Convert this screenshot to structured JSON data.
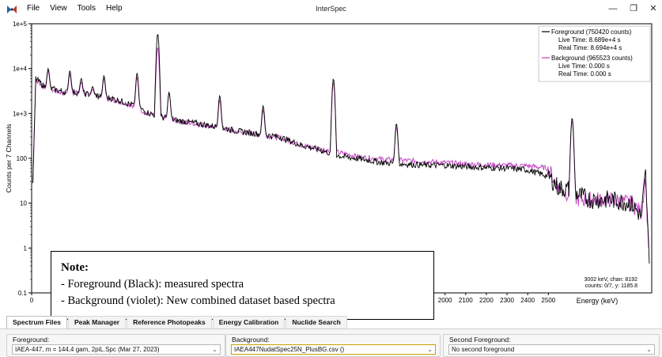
{
  "menu": {
    "file": "File",
    "view": "View",
    "tools": "Tools",
    "help": "Help"
  },
  "window": {
    "title": "InterSpec",
    "min_symbol": "—",
    "max_symbol": "❐",
    "close_symbol": "✕"
  },
  "chart_data": {
    "type": "line",
    "xlabel": "Energy (keV)",
    "ylabel": "Counts per 7 Channels",
    "xlim": [
      0,
      3000
    ],
    "ylim": [
      0.1,
      100000
    ],
    "y_scale": "log",
    "x_ticks": [
      {
        "label": "0",
        "v": 0
      },
      {
        "label": "2000",
        "v": 2000
      },
      {
        "label": "2100",
        "v": 2100
      },
      {
        "label": "2200",
        "v": 2200
      },
      {
        "label": "2300",
        "v": 2300
      },
      {
        "label": "2400",
        "v": 2400
      },
      {
        "label": "2500",
        "v": 2500
      }
    ],
    "y_ticks": [
      {
        "label": "1e+5",
        "v": 100000
      },
      {
        "label": "1e+4",
        "v": 10000
      },
      {
        "label": "1e+3",
        "v": 1000
      },
      {
        "label": "100",
        "v": 100
      },
      {
        "label": "10",
        "v": 10
      },
      {
        "label": "1",
        "v": 1
      },
      {
        "label": "0.1",
        "v": 0.1
      }
    ],
    "legend": {
      "position": "top-right",
      "foreground": {
        "name": "Foreground (750420 counts)",
        "live": "Live Time: 8.689e+4 s",
        "real": "Real Time: 8.694e+4 s",
        "color": "#000000"
      },
      "background": {
        "name": "Background (965523 counts)",
        "live": "Live Time: 0.000 s",
        "real": "Real Time: 0.000 s",
        "color": "#c040c0"
      }
    },
    "cursor": {
      "line1": "3002 keV, chan: 8192",
      "line2": "counts: 0/7, y: 1185.8"
    },
    "series": [
      {
        "name": "Foreground (750420 counts)",
        "color": "#000000",
        "x": [
          0,
          20,
          60,
          100,
          160,
          200,
          300,
          400,
          500,
          550,
          600,
          700,
          800,
          900,
          1000,
          1100,
          1200,
          1300,
          1400,
          1500,
          1600,
          1700,
          1800,
          1900,
          2000,
          2100,
          2200,
          2300,
          2400,
          2500,
          2550,
          2600,
          2650,
          2700,
          2800,
          2900,
          2950,
          2970,
          2980,
          2990
        ],
        "y": [
          3,
          6000,
          4000,
          3500,
          3000,
          3000,
          2600,
          2100,
          1500,
          1100,
          900,
          700,
          600,
          500,
          400,
          350,
          300,
          200,
          150,
          110,
          95,
          80,
          75,
          70,
          70,
          65,
          62,
          60,
          55,
          40,
          22,
          20,
          15,
          12,
          12,
          10,
          5,
          50,
          3,
          0.5
        ]
      },
      {
        "name": "Background (965523 counts)",
        "color": "#c040c0",
        "x": [
          0,
          20,
          60,
          100,
          160,
          200,
          300,
          400,
          500,
          550,
          600,
          700,
          800,
          900,
          1000,
          1100,
          1200,
          1300,
          1400,
          1500,
          1600,
          1700,
          1800,
          1900,
          2000,
          2100,
          2200,
          2300,
          2400,
          2500,
          2550,
          2600,
          2650,
          2700,
          2800,
          2900,
          2950,
          2970,
          2980,
          2990
        ],
        "y": [
          3,
          5500,
          3800,
          3300,
          2800,
          2900,
          2500,
          2000,
          1450,
          1050,
          880,
          690,
          580,
          490,
          390,
          340,
          290,
          200,
          160,
          130,
          105,
          95,
          90,
          85,
          80,
          75,
          72,
          70,
          68,
          60,
          20,
          16,
          12,
          12,
          12,
          10,
          6,
          40,
          3,
          0.5
        ]
      }
    ],
    "fg_peaks": [
      {
        "x": 80,
        "y": 10000
      },
      {
        "x": 185,
        "y": 9000
      },
      {
        "x": 240,
        "y": 6000
      },
      {
        "x": 295,
        "y": 4000
      },
      {
        "x": 350,
        "y": 7000
      },
      {
        "x": 510,
        "y": 8000
      },
      {
        "x": 610,
        "y": 60000
      },
      {
        "x": 665,
        "y": 3000
      },
      {
        "x": 910,
        "y": 2500
      },
      {
        "x": 1120,
        "y": 1500
      },
      {
        "x": 1460,
        "y": 6000
      },
      {
        "x": 1765,
        "y": 600
      },
      {
        "x": 2615,
        "y": 800
      }
    ],
    "bg_peaks": [
      {
        "x": 80,
        "y": 9000
      },
      {
        "x": 185,
        "y": 7500
      },
      {
        "x": 240,
        "y": 5000
      },
      {
        "x": 295,
        "y": 3500
      },
      {
        "x": 350,
        "y": 6000
      },
      {
        "x": 510,
        "y": 6500
      },
      {
        "x": 610,
        "y": 30000
      },
      {
        "x": 665,
        "y": 2800
      },
      {
        "x": 910,
        "y": 2000
      },
      {
        "x": 1120,
        "y": 1200
      },
      {
        "x": 1460,
        "y": 5000
      },
      {
        "x": 1765,
        "y": 500
      },
      {
        "x": 2615,
        "y": 700
      }
    ]
  },
  "note": {
    "title": "Note:",
    "line1": "- Foreground (Black): measured spectra",
    "line2": "- Background (violet): New combined dataset based spectra"
  },
  "tabs": [
    {
      "label": "Spectrum Files"
    },
    {
      "label": "Peak Manager"
    },
    {
      "label": "Reference Photopeaks"
    },
    {
      "label": "Energy Calibration"
    },
    {
      "label": "Nuclide Search"
    }
  ],
  "files": {
    "foreground": {
      "label": "Foreground:",
      "value": "IAEA-447, m = 144,4 gam, 2piL.Spc (Mar 27, 2023)"
    },
    "background": {
      "label": "Background:",
      "value": "IAEA447NudatSpec25N_PlusBG.csv ()"
    },
    "second": {
      "label": "Second Foreground:",
      "value": "No second foreground"
    }
  },
  "colors": {
    "foreground": "#000000",
    "background": "#c040c0",
    "tab_active": "#ffffff",
    "panel_bg": "#f5f5f5"
  },
  "icons": {
    "app": "interspec-logo-icon",
    "dropdown": "chevron-down-icon"
  }
}
